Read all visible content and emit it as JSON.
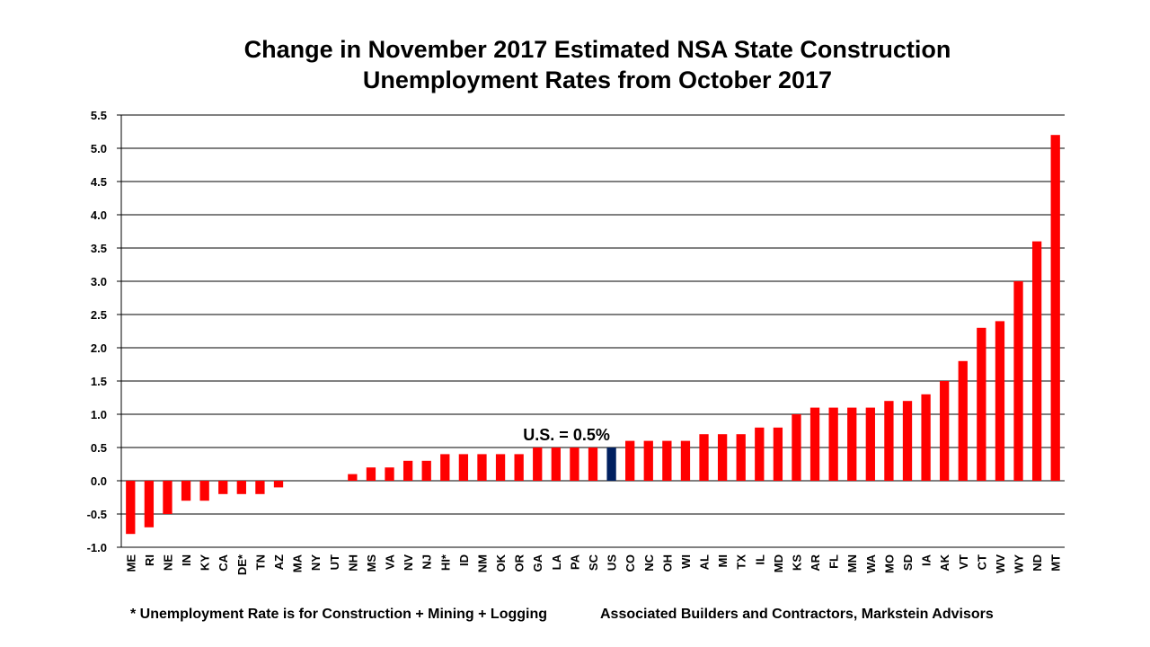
{
  "chart_data": {
    "type": "bar",
    "title_line1": "Change in November 2017 Estimated NSA State Construction",
    "title_line2": "Unemployment Rates from October 2017",
    "categories": [
      "ME",
      "RI",
      "NE",
      "IN",
      "KY",
      "CA",
      "DE*",
      "TN",
      "AZ",
      "MA",
      "NY",
      "UT",
      "NH",
      "MS",
      "VA",
      "NV",
      "NJ",
      "HI*",
      "ID",
      "NM",
      "OK",
      "OR",
      "GA",
      "LA",
      "PA",
      "SC",
      "US",
      "CO",
      "NC",
      "OH",
      "WI",
      "AL",
      "MI",
      "TX",
      "IL",
      "MD",
      "KS",
      "AR",
      "FL",
      "MN",
      "WA",
      "MO",
      "SD",
      "IA",
      "AK",
      "VT",
      "CT",
      "WV",
      "WY",
      "ND",
      "MT"
    ],
    "values": [
      -0.8,
      -0.7,
      -0.5,
      -0.3,
      -0.3,
      -0.2,
      -0.2,
      -0.2,
      -0.1,
      0.0,
      0.0,
      0.0,
      0.1,
      0.2,
      0.2,
      0.3,
      0.3,
      0.4,
      0.4,
      0.4,
      0.4,
      0.4,
      0.5,
      0.5,
      0.5,
      0.5,
      0.5,
      0.6,
      0.6,
      0.6,
      0.6,
      0.7,
      0.7,
      0.7,
      0.8,
      0.8,
      1.0,
      1.1,
      1.1,
      1.1,
      1.1,
      1.2,
      1.2,
      1.3,
      1.5,
      1.8,
      2.3,
      2.4,
      3.0,
      3.6,
      5.2
    ],
    "highlight_category": "US",
    "ylim": [
      -1.0,
      5.5
    ],
    "yticks": [
      "5.5",
      "5.0",
      "4.5",
      "4.0",
      "3.5",
      "3.0",
      "2.5",
      "2.0",
      "1.5",
      "1.0",
      "0.5",
      "0.0",
      "-0.5",
      "-1.0"
    ],
    "grid": true,
    "annotation": "U.S. = 0.5%",
    "colors": {
      "bar": "#ff0000",
      "highlight": "#002060",
      "grid": "#000000"
    }
  },
  "footer": {
    "footnote": "* Unemployment Rate is for Construction + Mining + Logging",
    "source": "Associated Builders and Contractors, Markstein Advisors"
  }
}
